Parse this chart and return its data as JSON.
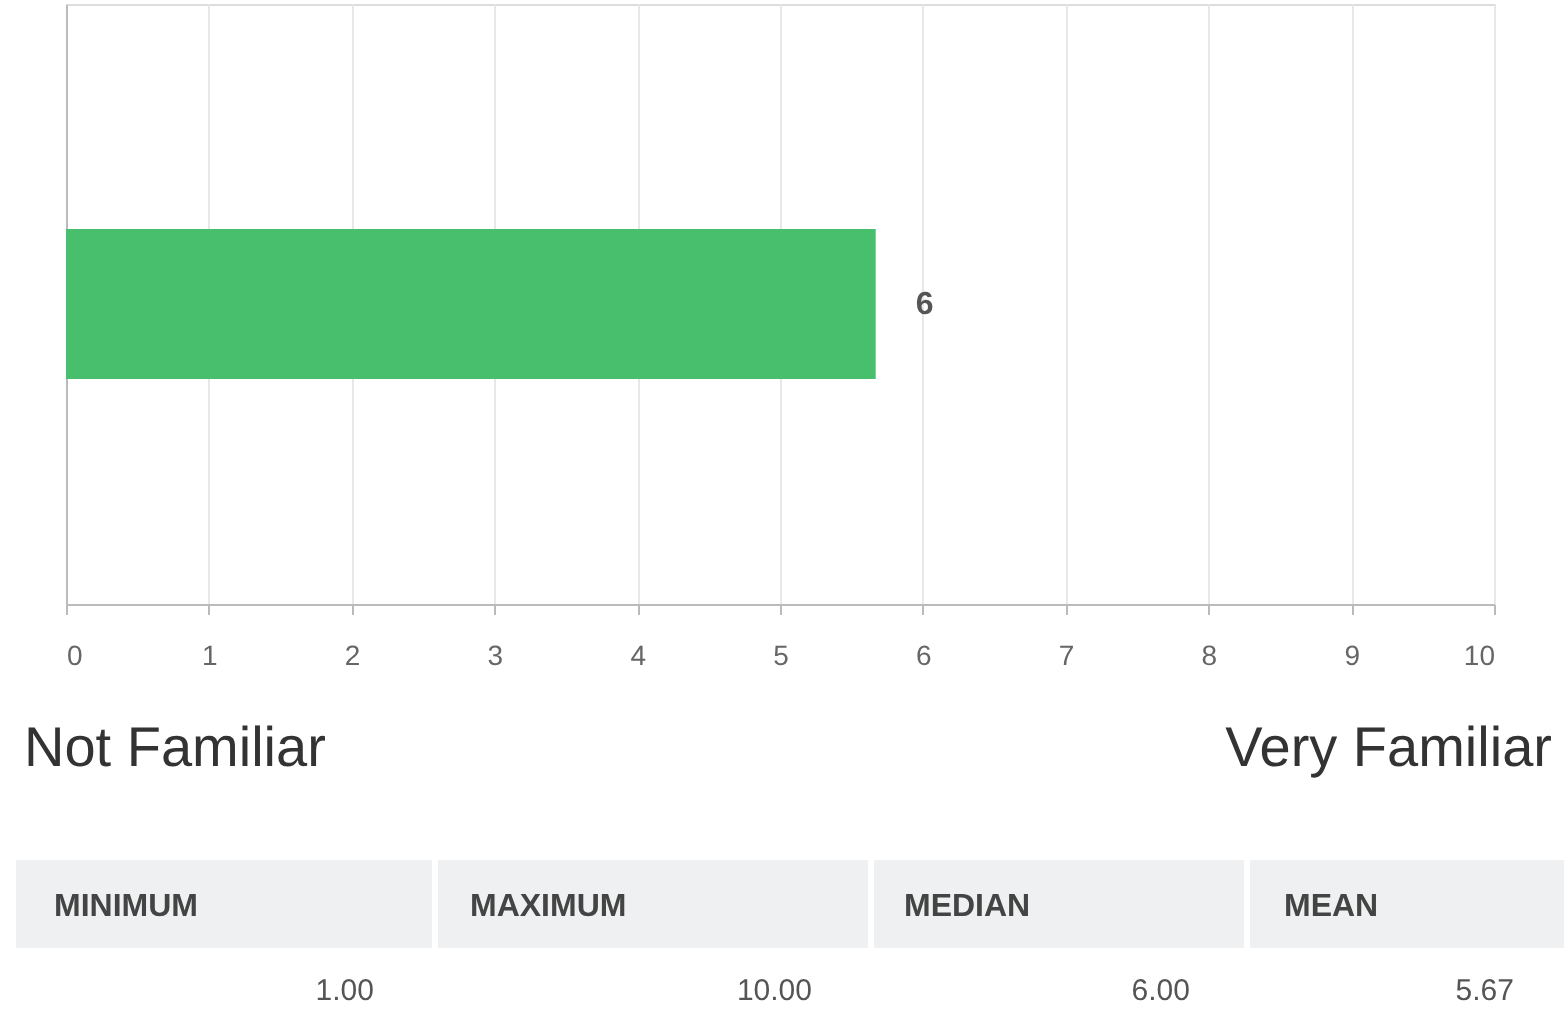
{
  "chart_data": {
    "type": "bar",
    "orientation": "horizontal",
    "categories": [
      null
    ],
    "values": [
      5.67
    ],
    "value_labels": [
      "6"
    ],
    "color": "#48bf6c",
    "xlim": [
      0,
      10
    ],
    "xticks": [
      0,
      1,
      2,
      3,
      4,
      5,
      6,
      7,
      8,
      9,
      10
    ],
    "grid": "x",
    "annotations": [
      "Not Familiar",
      "Very Familiar",
      "MINIMUM",
      "MAXIMUM",
      "MEDIAN",
      "MEAN",
      "1.00",
      "10.00",
      "6.00",
      "5.67"
    ]
  }
}
